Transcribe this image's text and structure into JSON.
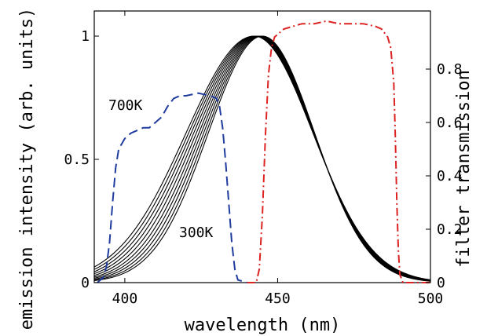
{
  "chart_data": {
    "type": "line",
    "title": "",
    "xlabel": "wavelength (nm)",
    "ylabel": "emission intensity (arb. units)",
    "ylabel_right": "filter transmission",
    "xlim": [
      390,
      500
    ],
    "ylim": [
      0,
      1.0
    ],
    "ylim_right": [
      0,
      1.0
    ],
    "x_ticks": [
      400,
      450,
      500
    ],
    "x_tick_labels": [
      "400",
      "450",
      "500"
    ],
    "y_ticks": [
      0,
      0.5,
      1
    ],
    "y_tick_labels": [
      "0",
      "0.5",
      "1"
    ],
    "y_right_ticks": [
      0,
      0.2,
      0.4,
      0.6,
      0.8
    ],
    "y_right_tick_labels": [
      "0",
      "0.2",
      "0.4",
      "0.6",
      "0.8"
    ],
    "grid": false,
    "legend": "none",
    "annotations": [
      {
        "text": "700K",
        "x": 411,
        "y": 0.72
      },
      {
        "text": "300K",
        "x": 422,
        "y": 0.19
      }
    ],
    "colors": {
      "emission": "#000000",
      "blue_filter": "#1f3c9e",
      "red_filter": "#dd2222"
    },
    "emission_series": [
      {
        "peak": 445.0,
        "width_left": 29.5,
        "width_right": 28.5
      },
      {
        "peak": 444.7,
        "width_left": 30.2,
        "width_right": 28.9
      },
      {
        "peak": 444.4,
        "width_left": 31.0,
        "width_right": 29.3
      },
      {
        "peak": 444.1,
        "width_left": 31.8,
        "width_right": 29.7
      },
      {
        "peak": 443.8,
        "width_left": 32.6,
        "width_right": 30.1
      },
      {
        "peak": 443.5,
        "width_left": 33.5,
        "width_right": 30.5
      },
      {
        "peak": 443.2,
        "width_left": 34.4,
        "width_right": 30.9
      },
      {
        "peak": 442.9,
        "width_left": 35.3,
        "width_right": 31.3
      },
      {
        "peak": 442.6,
        "width_left": 36.2,
        "width_right": 31.7
      },
      {
        "peak": 442.3,
        "width_left": 37.1,
        "width_right": 32.1
      }
    ],
    "blue_filter": {
      "x": [
        391,
        393,
        394,
        395,
        396,
        397,
        398,
        400,
        402,
        404,
        406,
        408,
        410,
        412,
        414,
        416,
        418,
        420,
        424,
        428,
        430,
        431,
        432,
        433,
        434,
        435,
        436,
        437,
        440
      ],
      "y": [
        0,
        0.02,
        0.06,
        0.15,
        0.3,
        0.43,
        0.5,
        0.54,
        0.56,
        0.57,
        0.58,
        0.58,
        0.6,
        0.62,
        0.66,
        0.69,
        0.7,
        0.7,
        0.71,
        0.7,
        0.69,
        0.66,
        0.58,
        0.45,
        0.3,
        0.15,
        0.05,
        0.01,
        0
      ]
    },
    "red_filter": {
      "x": [
        440,
        443,
        444,
        445,
        446,
        447,
        448,
        449,
        450,
        452,
        455,
        458,
        462,
        466,
        470,
        474,
        478,
        482,
        484,
        486,
        487,
        488,
        488.5,
        489,
        489.5,
        490,
        491,
        500
      ],
      "y": [
        0,
        0,
        0.05,
        0.25,
        0.55,
        0.78,
        0.88,
        0.92,
        0.93,
        0.95,
        0.96,
        0.97,
        0.97,
        0.98,
        0.97,
        0.97,
        0.97,
        0.96,
        0.95,
        0.92,
        0.88,
        0.75,
        0.55,
        0.3,
        0.12,
        0.03,
        0,
        0
      ]
    }
  }
}
